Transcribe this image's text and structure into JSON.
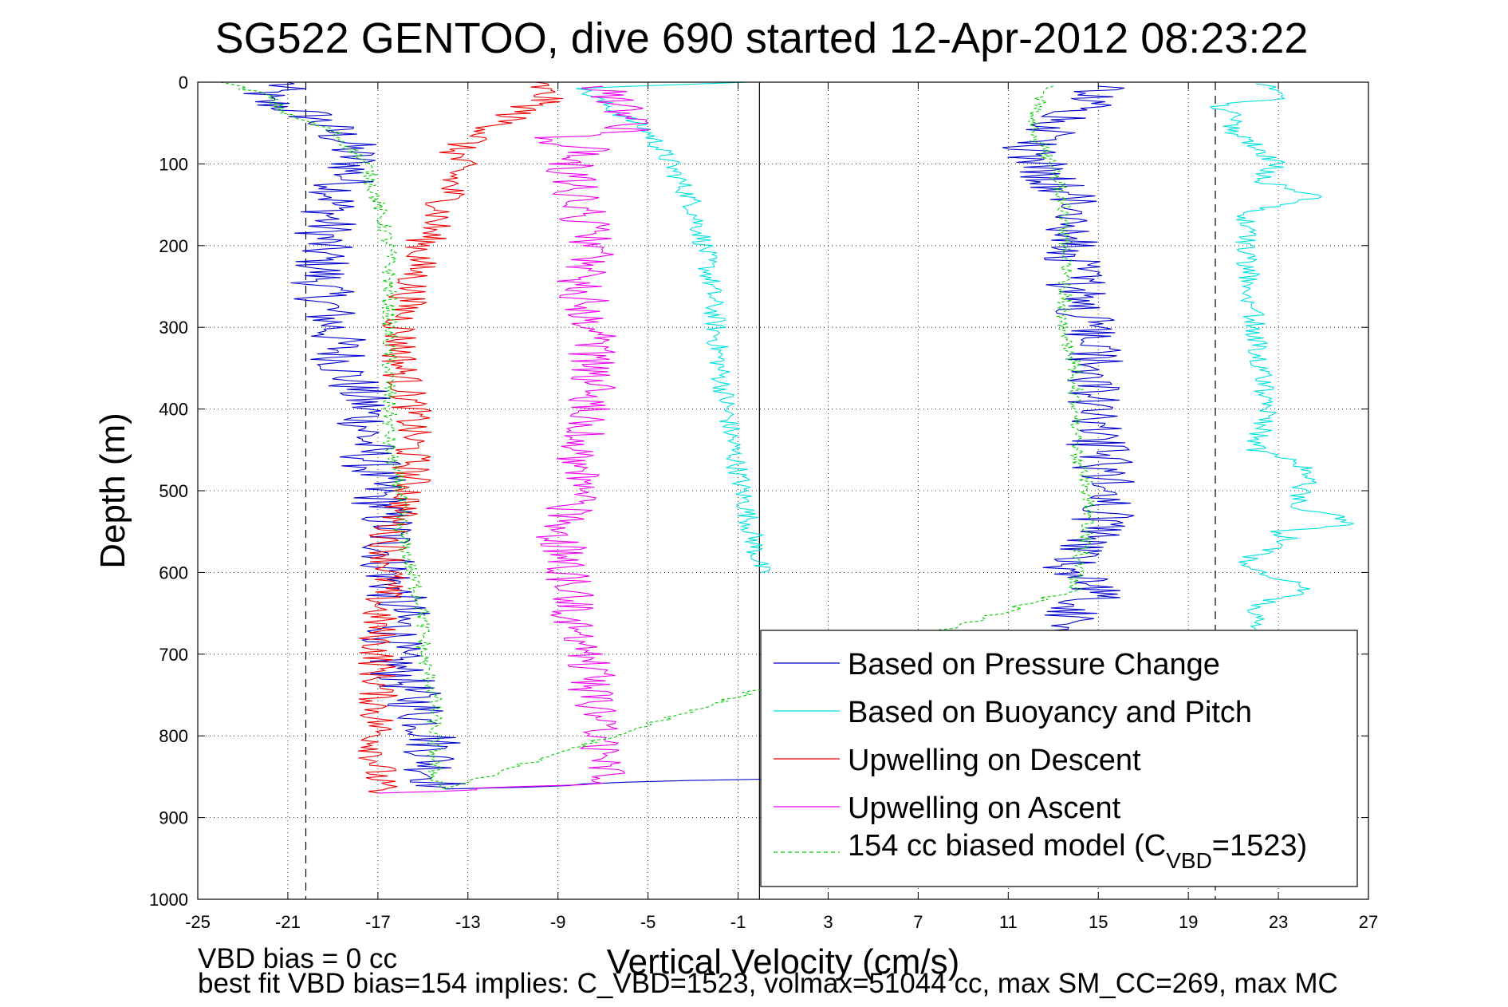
{
  "chart_data": {
    "type": "line",
    "title": "SG522 GENTOO, dive 690 started 12-Apr-2012 08:23:22",
    "xlabel": "Vertical Velocity (cm/s)",
    "ylabel": "Depth (m)",
    "xlim": [
      -25,
      27
    ],
    "ylim": [
      0,
      1000
    ],
    "y_reversed": true,
    "xticks": [
      "-25",
      "-21",
      "-17",
      "-13",
      "-9",
      "-5",
      "-1",
      "3",
      "7",
      "11",
      "15",
      "19",
      "23",
      "27"
    ],
    "yticks": [
      "0",
      "100",
      "200",
      "300",
      "400",
      "500",
      "600",
      "700",
      "800",
      "900",
      "1000"
    ],
    "grid": true,
    "legend_position": "lower-right",
    "reference_lines": [
      -20.2,
      20.2,
      -0.05
    ],
    "series": [
      {
        "name": "Based on Pressure Change",
        "color": "#0000cc",
        "descent": {
          "depth": [
            0,
            20,
            40,
            70,
            100,
            150,
            200,
            250,
            300,
            350,
            400,
            450,
            500,
            550,
            600,
            650,
            700,
            750,
            800,
            850,
            865
          ],
          "vel": [
            -21,
            -22.5,
            -20,
            -18.5,
            -18,
            -19,
            -19.5,
            -19.5,
            -19,
            -18.5,
            -17.5,
            -17.5,
            -17,
            -16.5,
            -16.5,
            -16,
            -16.5,
            -15.5,
            -14.5,
            -14.5,
            -14
          ]
        },
        "ascent": {
          "depth": [
            865,
            840,
            800,
            750,
            700,
            650,
            620,
            600,
            580,
            550,
            500,
            450,
            400,
            350,
            300,
            250,
            200,
            150,
            120,
            100,
            80,
            60,
            40,
            20,
            5
          ],
          "vel": [
            -14,
            14,
            14,
            14,
            14,
            14,
            15,
            13.8,
            14,
            15,
            15.5,
            15,
            14.5,
            15,
            14.5,
            14,
            14,
            14,
            13,
            12.5,
            12,
            13,
            14,
            15,
            15
          ]
        },
        "noise": 1.4
      },
      {
        "name": "Based on Buoyancy and Pitch",
        "color": "#00e0e0",
        "descent": {
          "depth": [
            0,
            8,
            60,
            80,
            100,
            150,
            200,
            250,
            300,
            350,
            400,
            450,
            500,
            550,
            575,
            600
          ],
          "vel": [
            -0.5,
            -8,
            -5,
            -4.5,
            -4,
            -3,
            -2.5,
            -2.2,
            -2,
            -1.8,
            -1.5,
            -1.2,
            -0.8,
            -0.4,
            -0.2,
            0
          ]
        },
        "ascent": {
          "depth": [
            670,
            640,
            620,
            600,
            585,
            560,
            550,
            540,
            520,
            500,
            480,
            460,
            450,
            400,
            300,
            200,
            160,
            140,
            120,
            100,
            80,
            60,
            40,
            30,
            20,
            10,
            2
          ],
          "vel": [
            22,
            22,
            24.5,
            22,
            21.5,
            23.5,
            23,
            26.5,
            24,
            24,
            24.5,
            23.5,
            22,
            22.5,
            22,
            21.5,
            21.5,
            25,
            22,
            23,
            22,
            21,
            21,
            20,
            23,
            23,
            22
          ]
        },
        "noise": 0.5
      },
      {
        "name": "Upwelling on Descent",
        "color": "#ee0000",
        "descent": {
          "depth": [
            0,
            20,
            40,
            60,
            80,
            100,
            150,
            200,
            250,
            300,
            350,
            400,
            450,
            500,
            550,
            600,
            650,
            860,
            870
          ],
          "vel": [
            -10,
            -9.5,
            -11,
            -12,
            -13.5,
            -13.5,
            -14,
            -15,
            -15.5,
            -16,
            -16,
            -15.5,
            -15.5,
            -15.5,
            -16.5,
            -16.5,
            -17,
            -17,
            -17
          ]
        },
        "noise": 0.9
      },
      {
        "name": "Upwelling on Ascent",
        "color": "#ee00ee",
        "ascent": {
          "depth": [
            870,
            860,
            850,
            800,
            750,
            700,
            650,
            600,
            550,
            500,
            450,
            400,
            350,
            300,
            250,
            200,
            150,
            100,
            80,
            70,
            60,
            40,
            20,
            5
          ],
          "vel": [
            -17,
            -8,
            -7,
            -7,
            -7.5,
            -7.5,
            -8.5,
            -8.5,
            -9,
            -8,
            -8,
            -7.5,
            -7.5,
            -7.5,
            -8,
            -7.5,
            -8,
            -8.5,
            -7.5,
            -10,
            -6,
            -6,
            -6.5,
            -7
          ]
        },
        "noise": 1.1
      },
      {
        "name": "154 cc biased model (C_VBD=1523)",
        "color": "#00cc00",
        "dashed": true,
        "descent": {
          "depth": [
            0,
            15,
            40,
            60,
            100,
            150,
            200,
            250,
            300,
            350,
            400,
            450,
            500,
            550,
            600,
            650,
            700,
            750,
            800,
            850,
            865
          ],
          "vel": [
            -24,
            -22,
            -21,
            -19,
            -17.5,
            -17,
            -16.5,
            -16.5,
            -16.5,
            -16.5,
            -16.5,
            -16.5,
            -16,
            -16,
            -15.5,
            -15,
            -15,
            -14.5,
            -14.5,
            -14.5,
            -14
          ]
        },
        "ascent": {
          "depth": [
            865,
            620,
            600,
            550,
            500,
            450,
            400,
            350,
            300,
            250,
            200,
            150,
            100,
            80,
            60,
            40,
            20,
            5
          ],
          "vel": [
            -14,
            14,
            14,
            14.5,
            14.5,
            14,
            14,
            14,
            13.5,
            13.5,
            13.5,
            13.5,
            13,
            12.5,
            12,
            12,
            12.5,
            13
          ]
        },
        "noise": 0.35
      }
    ]
  },
  "legend": {
    "items": [
      {
        "label": "Based on Pressure Change"
      },
      {
        "label": "Based on Buoyancy and Pitch"
      },
      {
        "label": "Upwelling on Descent"
      },
      {
        "label": "Upwelling on Ascent"
      },
      {
        "label_main": "154 cc biased model (C",
        "label_sub": "VBD",
        "label_tail": "=1523)"
      }
    ]
  },
  "notes": {
    "line1": "VBD bias = 0 cc",
    "line2": "best fit VBD bias=154 implies: C_VBD=1523, volmax=51044 cc, max SM_CC=269, max MC"
  }
}
